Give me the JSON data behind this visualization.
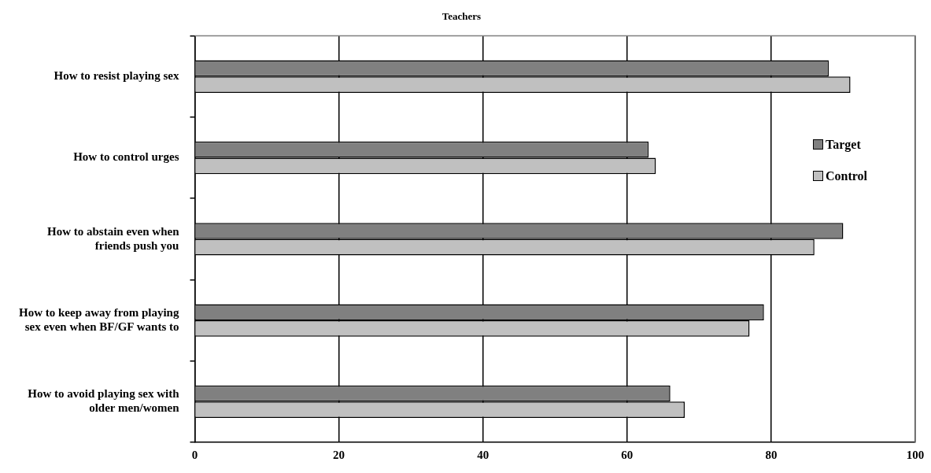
{
  "chart_data": {
    "type": "bar",
    "orientation": "horizontal",
    "title": "Teachers",
    "categories": [
      "How to resist playing sex",
      "How to control urges",
      "How to abstain even when friends push you",
      "How to keep away from playing sex even when BF/GF wants to",
      "How to avoid playing sex with older men/women"
    ],
    "series": [
      {
        "name": "Target",
        "color": "#808080",
        "values": [
          88,
          63,
          90,
          79,
          66
        ]
      },
      {
        "name": "Control",
        "color": "#c0c0c0",
        "values": [
          91,
          64,
          86,
          77,
          68
        ]
      }
    ],
    "xlim": [
      0,
      100
    ],
    "xticks": [
      0,
      20,
      40,
      60,
      80,
      100
    ],
    "grid": "x",
    "legend": "right"
  }
}
